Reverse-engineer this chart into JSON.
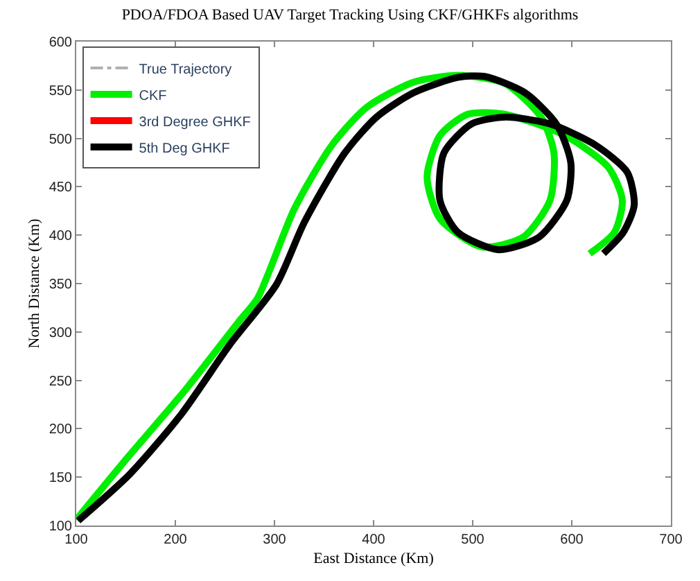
{
  "chart_data": {
    "type": "line",
    "title": "PDOA/FDOA Based UAV Target Tracking Using CKF/GHKFs algorithms",
    "xlabel": "East Distance (Km)",
    "ylabel": "North Distance (Km)",
    "xlim": [
      100,
      700
    ],
    "xticks": [
      100,
      200,
      300,
      400,
      500,
      600,
      700
    ],
    "ylim": [
      100,
      600
    ],
    "yticks": [
      100,
      150,
      200,
      250,
      300,
      350,
      400,
      450,
      500,
      550,
      600
    ],
    "legend": "top left",
    "series": [
      {
        "name": "True Trajectory",
        "color": "#b0b0b0",
        "line_style": "dashed"
      },
      {
        "name": "CKF",
        "color": "#00ee00",
        "line_style": "solid",
        "x": [
          100,
          150,
          210,
          265,
          283,
          320,
          358,
          393,
          440,
          485,
          532,
          569,
          582,
          578,
          551,
          509,
          467,
          454,
          467,
          495,
          532,
          593,
          637,
          651,
          643,
          618
        ],
        "values": [
          106,
          168,
          240,
          312,
          335,
          427,
          493,
          532,
          558,
          565,
          557,
          522,
          485,
          436,
          398,
          388,
          417,
          460,
          503,
          525,
          525,
          503,
          470,
          436,
          403,
          381
        ]
      },
      {
        "name": "3rd Degree GHKF",
        "color": "#ff0000",
        "line_style": "solid"
      },
      {
        "name": "5th Deg GHKF",
        "color": "#000000",
        "line_style": "solid",
        "x": [
          102,
          154,
          206,
          255,
          302,
          330,
          371,
          403,
          440,
          485,
          512,
          553,
          585,
          599,
          595,
          567,
          526,
          485,
          467,
          471,
          499,
          532,
          578,
          624,
          656,
          663,
          652,
          632
        ],
        "values": [
          105,
          153,
          215,
          287,
          349,
          413,
          485,
          522,
          547,
          563,
          564,
          547,
          514,
          475,
          436,
          398,
          385,
          403,
          436,
          485,
          515,
          522,
          515,
          493,
          465,
          431,
          403,
          381
        ]
      }
    ]
  }
}
